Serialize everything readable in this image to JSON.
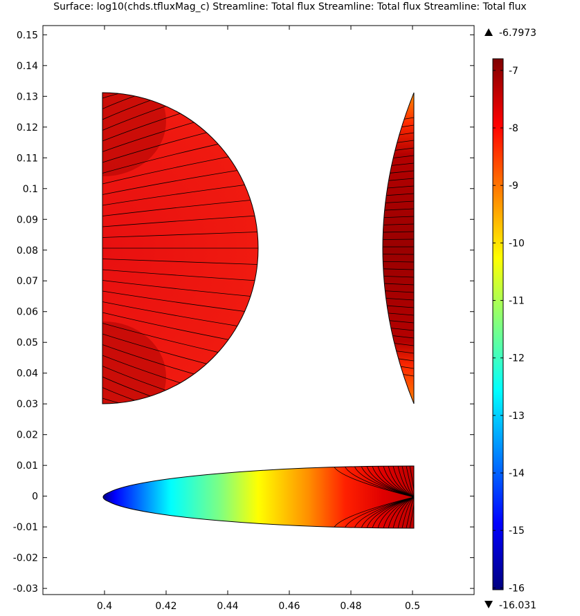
{
  "title": "Surface: log10(chds.tfluxMag_c)  Streamline: Total flux  Streamline: Total flux  Streamline: Total flux",
  "colors": {
    "frame": "#000000",
    "streamline": "#000000",
    "colormap": [
      "#00007f",
      "#0000ff",
      "#00ffff",
      "#ffff00",
      "#ff0000",
      "#7f0000"
    ]
  },
  "chart_data": {
    "type": "heatmap",
    "title": "Surface: log10(chds.tfluxMag_c)  Streamline: Total flux  Streamline: Total flux  Streamline: Total flux",
    "xlim": [
      0.38,
      0.52
    ],
    "ylim": [
      -0.032,
      0.153
    ],
    "x_ticks": [
      0.4,
      0.42,
      0.44,
      0.46,
      0.48,
      0.5
    ],
    "x_tick_labels": [
      "0.4",
      "0.42",
      "0.44",
      "0.46",
      "0.48",
      "0.5"
    ],
    "y_ticks": [
      -0.03,
      -0.02,
      -0.01,
      0,
      0.01,
      0.02,
      0.03,
      0.04,
      0.05,
      0.06,
      0.07,
      0.08,
      0.09,
      0.1,
      0.11,
      0.12,
      0.13,
      0.14,
      0.15
    ],
    "y_tick_labels": [
      "-0.03",
      "-0.02",
      "-0.01",
      "0",
      "0.01",
      "0.02",
      "0.03",
      "0.04",
      "0.05",
      "0.06",
      "0.07",
      "0.08",
      "0.09",
      "0.1",
      "0.11",
      "0.12",
      "0.13",
      "0.14",
      "0.15"
    ],
    "grid": false,
    "colorbar": {
      "range": [
        -16,
        -7
      ],
      "min_value": "-16.031",
      "max_value": "-6.7973",
      "ticks": [
        -7,
        -8,
        -9,
        -10,
        -11,
        -12,
        -13,
        -14,
        -15,
        -16
      ],
      "tick_labels": [
        "-7",
        "-8",
        "-9",
        "-10",
        "-11",
        "-12",
        "-13",
        "-14",
        "-15",
        "-16"
      ],
      "colormap": "rainbow"
    },
    "regions": [
      {
        "shape": "half-disc",
        "center": [
          0.4,
          0.08
        ],
        "radius": 0.05,
        "value_range": [
          -7.8,
          -7.3
        ]
      },
      {
        "shape": "lens",
        "x_range": [
          0.49,
          0.5
        ],
        "y_range": [
          0.03,
          0.13
        ],
        "value_range": [
          -9.0,
          -7.2
        ]
      },
      {
        "shape": "half-lens",
        "x_range": [
          0.4,
          0.5
        ],
        "y_range": [
          -0.01,
          0.01
        ],
        "value_range": [
          -16.0,
          -7.5
        ]
      }
    ]
  }
}
